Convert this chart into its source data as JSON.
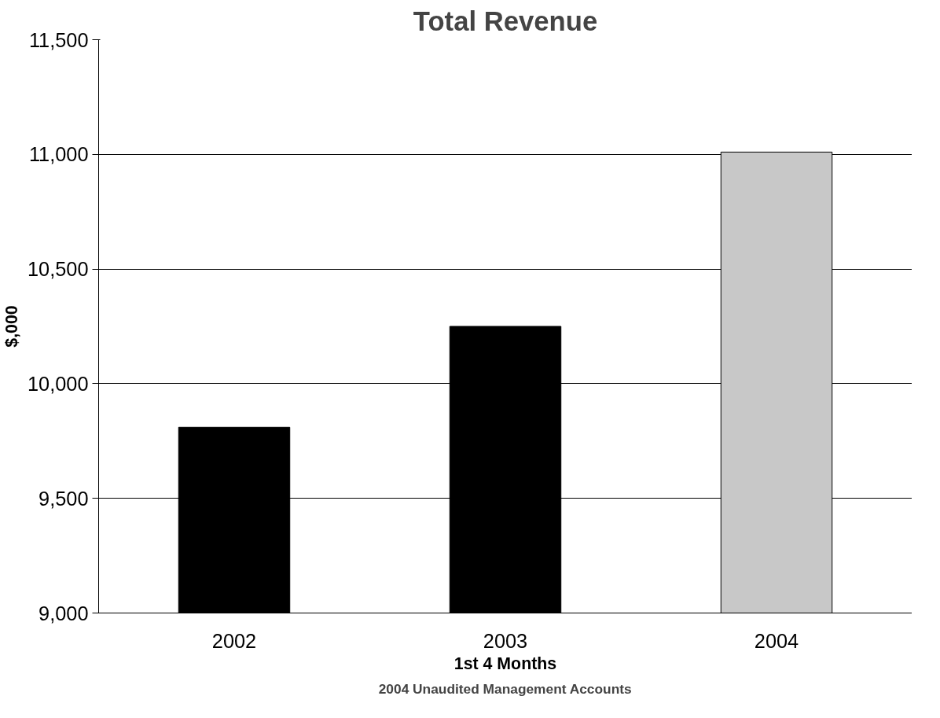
{
  "chart_data": {
    "type": "bar",
    "title": "Total Revenue",
    "xlabel": "1st 4 Months",
    "ylabel": "$,000",
    "annotations": [
      "2004 Unaudited Management Accounts"
    ],
    "categories": [
      "2002",
      "2003",
      "2004"
    ],
    "values": [
      9810,
      10250,
      11010
    ],
    "colors": [
      "#000000",
      "#000000",
      "#c8c8c8"
    ],
    "ylim": [
      9000,
      11500
    ],
    "yticks": [
      {
        "value": 9000,
        "label": "9,000"
      },
      {
        "value": 9500,
        "label": "9,500"
      },
      {
        "value": 10000,
        "label": "10,000"
      },
      {
        "value": 10500,
        "label": "10,500"
      },
      {
        "value": 11000,
        "label": "11,000"
      },
      {
        "value": 11500,
        "label": "11,500"
      }
    ],
    "grid": "y"
  }
}
